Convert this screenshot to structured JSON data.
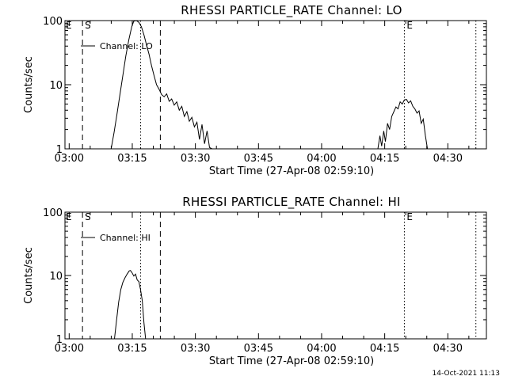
{
  "chart_data": [
    {
      "type": "line",
      "title": "RHESSI PARTICLE_RATE Channel: LO",
      "xlabel": "Start Time (27-Apr-08 02:59:10)",
      "ylabel": "Counts/sec",
      "yscale": "log",
      "ylim": [
        1,
        100
      ],
      "xlim_min": [
        -0.17,
        100
      ],
      "x_tick_minutes": [
        0.83,
        15.83,
        30.83,
        45.83,
        60.83,
        75.83,
        90.83
      ],
      "x_tick_labels": [
        "03:00",
        "03:15",
        "03:30",
        "03:45",
        "04:00",
        "04:15",
        "04:30"
      ],
      "y_ticks": [
        1,
        10,
        100
      ],
      "y_tick_labels": [
        "1",
        "10",
        "100"
      ],
      "markers": [
        {
          "label": "S",
          "minute": 4.0,
          "style": "dashed"
        },
        {
          "label": "",
          "minute": 17.8,
          "style": "dotted"
        },
        {
          "label": "",
          "minute": 22.5,
          "style": "dashed"
        },
        {
          "label": "E",
          "minute": 80.5,
          "style": "dotted"
        },
        {
          "label": "",
          "minute": 97.5,
          "style": "dotted"
        }
      ],
      "left_label": "E",
      "series": [
        {
          "name": "Channel: LO",
          "x": [
            10.8,
            11.5,
            12.2,
            12.9,
            13.6,
            14.3,
            15.0,
            15.7,
            16.2,
            16.8,
            17.4,
            18.0,
            18.6,
            19.2,
            19.8,
            20.4,
            21.0,
            21.6,
            22.2,
            22.8,
            23.4,
            24.0,
            24.6,
            25.2,
            25.8,
            26.4,
            27.0,
            27.6,
            28.2,
            28.8,
            29.4,
            30.0,
            30.6,
            31.2,
            31.8,
            32.4,
            33.0,
            33.6,
            34.2,
            34.8
          ],
          "y": [
            1.0,
            1.8,
            3.5,
            7.0,
            14,
            28,
            50,
            80,
            98,
            100,
            94,
            80,
            60,
            42,
            30,
            20,
            14,
            10,
            8.5,
            7.0,
            6.5,
            7.2,
            5.5,
            6.0,
            4.8,
            5.4,
            4.0,
            4.6,
            3.2,
            3.8,
            2.7,
            3.1,
            2.2,
            2.6,
            1.4,
            2.4,
            1.2,
            1.9,
            1.05,
            1.0
          ]
        },
        {
          "name": "",
          "x": [
            74.2,
            74.7,
            75.1,
            75.6,
            76.0,
            76.5,
            77.0,
            77.5,
            78.0,
            78.5,
            79.0,
            79.5,
            80.0,
            80.5,
            81.0,
            81.5,
            82.0,
            82.5,
            83.0,
            83.5,
            84.0,
            84.5,
            85.0,
            85.5,
            86.0
          ],
          "y": [
            1.0,
            1.6,
            1.1,
            1.9,
            1.3,
            2.5,
            2.0,
            3.2,
            3.8,
            4.5,
            4.2,
            5.4,
            5.0,
            5.8,
            5.9,
            5.2,
            5.6,
            4.6,
            4.2,
            3.6,
            3.9,
            2.5,
            2.9,
            1.6,
            1.0
          ]
        }
      ]
    },
    {
      "type": "line",
      "title": "RHESSI PARTICLE_RATE Channel: HI",
      "xlabel": "Start Time (27-Apr-08 02:59:10)",
      "ylabel": "Counts/sec",
      "yscale": "log",
      "ylim": [
        1,
        100
      ],
      "xlim_min": [
        -0.17,
        100
      ],
      "x_tick_minutes": [
        0.83,
        15.83,
        30.83,
        45.83,
        60.83,
        75.83,
        90.83
      ],
      "x_tick_labels": [
        "03:00",
        "03:15",
        "03:30",
        "03:45",
        "04:00",
        "04:15",
        "04:30"
      ],
      "y_ticks": [
        1,
        10,
        100
      ],
      "y_tick_labels": [
        "1",
        "10",
        "100"
      ],
      "markers": [
        {
          "label": "S",
          "minute": 4.0,
          "style": "dashed"
        },
        {
          "label": "",
          "minute": 17.8,
          "style": "dotted"
        },
        {
          "label": "",
          "minute": 22.5,
          "style": "dashed"
        },
        {
          "label": "E",
          "minute": 80.5,
          "style": "dotted"
        },
        {
          "label": "",
          "minute": 97.5,
          "style": "dotted"
        }
      ],
      "left_label": "E",
      "series": [
        {
          "name": "Channel: HI",
          "x": [
            11.6,
            12.1,
            12.6,
            13.1,
            13.6,
            14.1,
            14.6,
            15.1,
            15.4,
            15.8,
            16.2,
            16.6,
            17.0,
            17.4,
            17.8,
            18.2,
            18.6,
            19.0
          ],
          "y": [
            1.0,
            2.0,
            3.8,
            6.0,
            7.8,
            9.2,
            10.5,
            11.8,
            12.0,
            11.0,
            9.8,
            10.5,
            8.5,
            8.0,
            6.0,
            4.0,
            1.8,
            1.0
          ]
        }
      ]
    }
  ],
  "timestamp": "14-Oct-2021 11:13"
}
